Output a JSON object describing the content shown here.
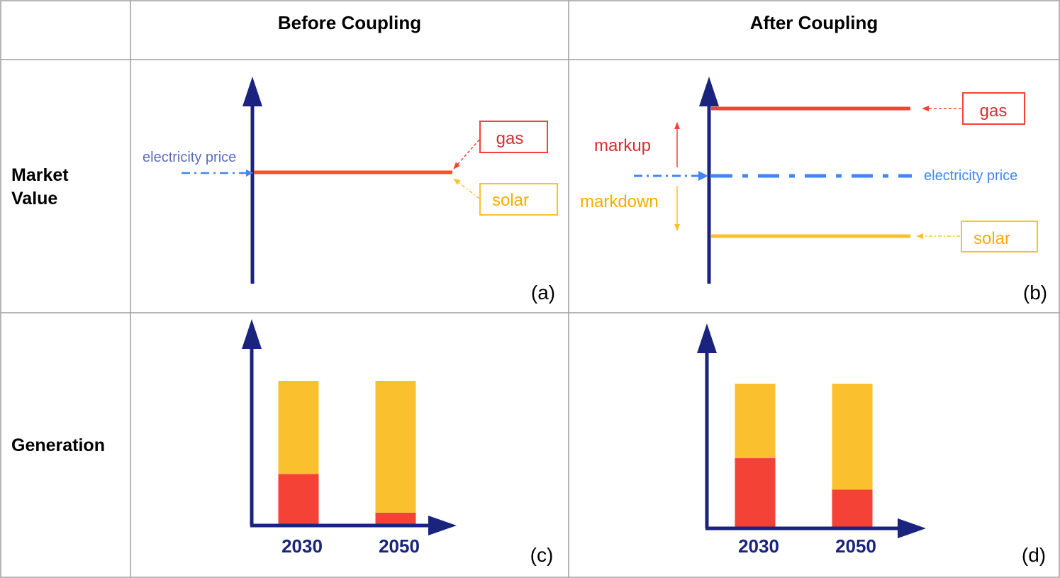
{
  "header": {
    "col_before": "Before Coupling",
    "col_after": "After Coupling"
  },
  "rows": {
    "market_value": "Market\nValue",
    "generation": "Generation"
  },
  "panel_a": {
    "tag": "(a)",
    "price_label": "electricity price",
    "gas_label": "gas",
    "solar_label": "solar"
  },
  "panel_b": {
    "tag": "(b)",
    "price_label": "electricity price",
    "gas_label": "gas",
    "solar_label": "solar",
    "markup_label": "markup",
    "markdown_label": "markdown"
  },
  "panel_c": {
    "tag": "(c)"
  },
  "panel_d": {
    "tag": "(d)"
  },
  "colors": {
    "axis": "#1a237e",
    "gas": "#f44336",
    "solar": "#fbc02d",
    "price": "#4285f4",
    "grid": "#9e9e9e",
    "markup_text": "#d32f2f",
    "markdown_text": "#f9ab00"
  },
  "chart_data": [
    {
      "type": "bar",
      "panel": "c",
      "categories": [
        "2030",
        "2050"
      ],
      "series": [
        {
          "name": "gas",
          "values": [
            0.35,
            0.08
          ]
        },
        {
          "name": "solar",
          "values": [
            0.65,
            0.92
          ]
        }
      ],
      "ylim": [
        0,
        1
      ]
    },
    {
      "type": "bar",
      "panel": "d",
      "categories": [
        "2030",
        "2050"
      ],
      "series": [
        {
          "name": "gas",
          "values": [
            0.48,
            0.26
          ]
        },
        {
          "name": "solar",
          "values": [
            0.52,
            0.74
          ]
        }
      ],
      "ylim": [
        0,
        1
      ]
    }
  ]
}
